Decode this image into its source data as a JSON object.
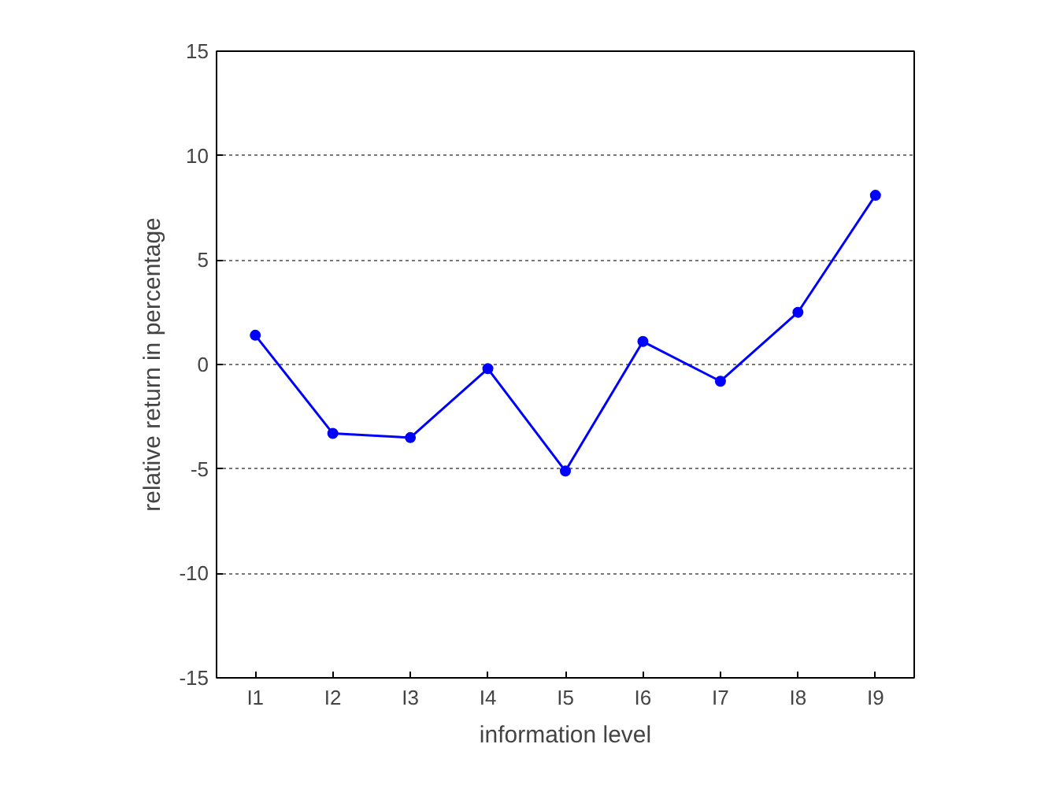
{
  "chart_data": {
    "type": "line",
    "xlabel": "information level",
    "ylabel": "relative return in percentage",
    "categories": [
      "I1",
      "I2",
      "I3",
      "I4",
      "I5",
      "I6",
      "I7",
      "I8",
      "I9"
    ],
    "series": [
      {
        "color": "#0000ff",
        "values": [
          1.4,
          -3.3,
          -3.5,
          -0.2,
          -5.1,
          1.1,
          -0.8,
          2.5,
          8.1
        ]
      }
    ],
    "ylim": [
      -15,
      15
    ],
    "yticks": [
      -15,
      -10,
      -5,
      0,
      5,
      10,
      15
    ],
    "grid": "y",
    "marker": "circle",
    "line_style": "solid"
  }
}
